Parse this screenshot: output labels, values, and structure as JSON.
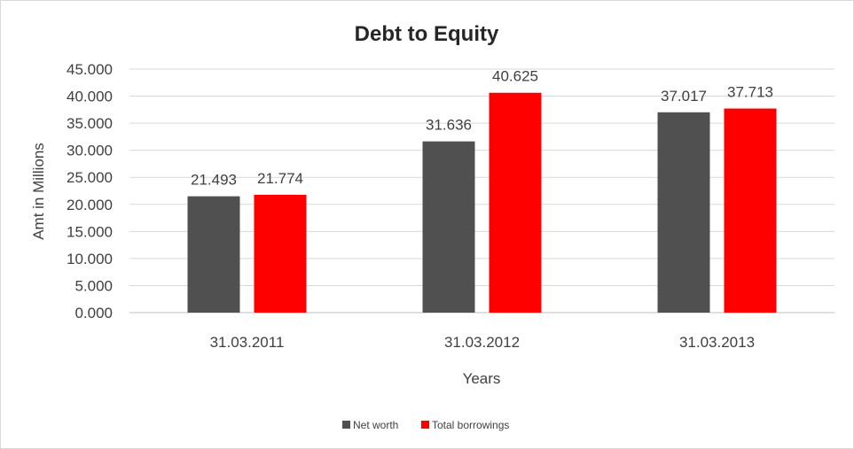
{
  "chart_data": {
    "type": "bar",
    "title": "Debt to Equity",
    "xlabel": "Years",
    "ylabel": "Amt in Millions",
    "categories": [
      "31.03.2011",
      "31.03.2012",
      "31.03.2013"
    ],
    "series": [
      {
        "name": "Net worth",
        "values": [
          21.493,
          31.636,
          37.017
        ],
        "color": "#505050"
      },
      {
        "name": "Total borrowings",
        "values": [
          21.774,
          40.625,
          37.713
        ],
        "color": "#ff0000"
      }
    ],
    "ylim": [
      0,
      45
    ],
    "yticks": [
      0,
      5,
      10,
      15,
      20,
      25,
      30,
      35,
      40,
      45
    ],
    "ytick_labels": [
      "0.000",
      "5.000",
      "10.000",
      "15.000",
      "20.000",
      "25.000",
      "30.000",
      "35.000",
      "40.000",
      "45.000"
    ],
    "data_labels": [
      [
        "21.493",
        "31.636",
        "37.017"
      ],
      [
        "21.774",
        "40.625",
        "37.713"
      ]
    ],
    "grid": true,
    "legend_position": "bottom"
  }
}
